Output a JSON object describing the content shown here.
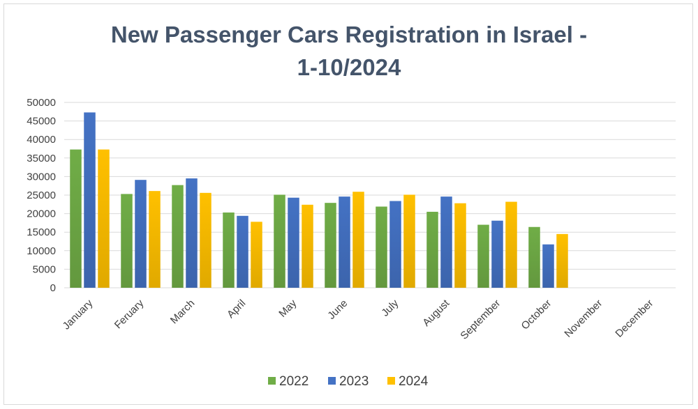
{
  "chart_data": {
    "type": "bar",
    "title_line1": "New Passenger Cars Registration in Israel -",
    "title_line2": "1-10/2024",
    "categories": [
      "January",
      "Feruary",
      "March",
      "April",
      "May",
      "June",
      "July",
      "August",
      "September",
      "October",
      "November",
      "December"
    ],
    "series": [
      {
        "name": "2022",
        "color": "#70ad47",
        "values": [
          37300,
          25300,
          27700,
          20300,
          25100,
          22900,
          21900,
          20500,
          17000,
          16400,
          null,
          null
        ]
      },
      {
        "name": "2023",
        "color": "#4472c4",
        "values": [
          47300,
          29100,
          29500,
          19400,
          24300,
          24600,
          23400,
          24600,
          18100,
          11700,
          null,
          null
        ]
      },
      {
        "name": "2024",
        "color": "#ffc000",
        "values": [
          37300,
          26100,
          25600,
          17800,
          22400,
          25900,
          25100,
          22800,
          23200,
          14500,
          null,
          null
        ]
      }
    ],
    "yticks": [
      "0",
      "5000",
      "10000",
      "15000",
      "20000",
      "25000",
      "30000",
      "35000",
      "40000",
      "45000",
      "50000"
    ],
    "ylim": [
      0,
      50000
    ],
    "grid": true,
    "legend_position": "bottom"
  }
}
